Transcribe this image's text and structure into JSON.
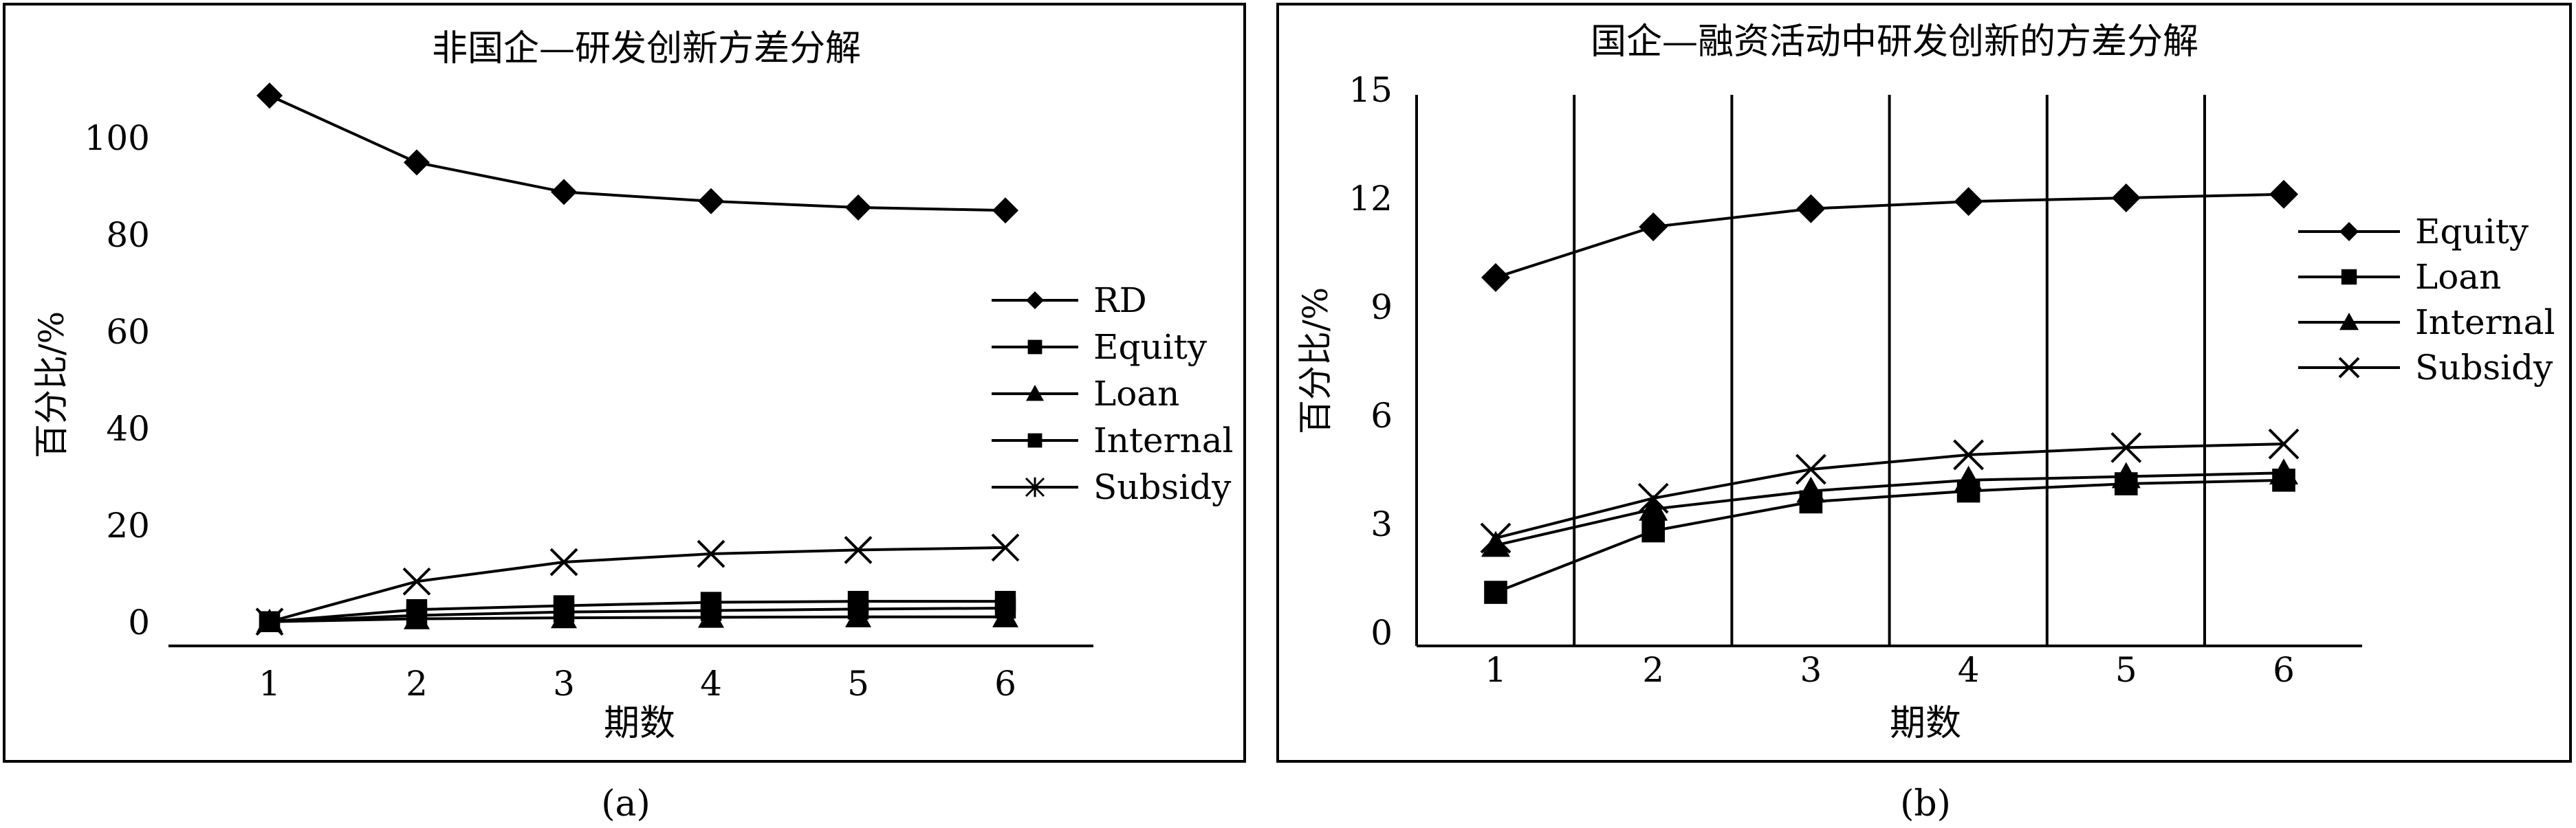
{
  "captions": [
    "(a)",
    "(b)"
  ],
  "chart_data": [
    {
      "type": "line",
      "title": "非国企—研发创新方差分解",
      "xlabel": "期数",
      "ylabel": "百分比/%",
      "x": [
        1,
        2,
        3,
        4,
        5,
        6
      ],
      "x_tick_labels": [
        "1",
        "2",
        "3",
        "4",
        "5",
        "6"
      ],
      "ylim": [
        -5,
        110
      ],
      "y_ticks": [
        0,
        20,
        40,
        60,
        80,
        100
      ],
      "y_tick_labels": [
        "0",
        "20",
        "40",
        "60",
        "80",
        "100"
      ],
      "grid": false,
      "legend_position": "right",
      "series": [
        {
          "name": "RD",
          "marker": "diamond",
          "legend_marker": "diamond",
          "values": [
            108.6,
            94.8,
            88.7,
            86.8,
            85.5,
            84.9
          ]
        },
        {
          "name": "Equity",
          "marker": "square",
          "legend_marker": "square",
          "values": [
            0,
            2.5,
            3.3,
            4.0,
            4.2,
            4.2
          ]
        },
        {
          "name": "Loan",
          "marker": "triangle",
          "legend_marker": "triangle",
          "values": [
            0,
            0.6,
            0.8,
            0.9,
            1.0,
            1.0
          ]
        },
        {
          "name": "Internal",
          "marker": "square",
          "legend_marker": "square",
          "values": [
            0,
            1.3,
            2.0,
            2.3,
            2.6,
            2.8
          ]
        },
        {
          "name": "Subsidy",
          "marker": "x",
          "legend_marker": "asterisk",
          "values": [
            0,
            8.3,
            12.3,
            14.0,
            14.8,
            15.3
          ]
        }
      ]
    },
    {
      "type": "line",
      "title": "国企—融资活动中研发创新的方差分解",
      "xlabel": "期数",
      "ylabel": "百分比/%",
      "x": [
        1,
        2,
        3,
        4,
        5,
        6
      ],
      "x_tick_labels": [
        "1",
        "2",
        "3",
        "4",
        "5",
        "6"
      ],
      "ylim": [
        0,
        15
      ],
      "y_ticks": [
        0,
        3,
        6,
        9,
        12,
        15
      ],
      "y_tick_labels": [
        "0",
        "3",
        "6",
        "9",
        "12",
        "15"
      ],
      "grid": "vertical category dividers",
      "legend_position": "right",
      "series": [
        {
          "name": "Equity",
          "marker": "diamond",
          "legend_marker": "diamond",
          "values": [
            9.8,
            11.2,
            11.7,
            11.9,
            12.0,
            12.1
          ]
        },
        {
          "name": "Loan",
          "marker": "square",
          "legend_marker": "square",
          "values": [
            1.1,
            2.8,
            3.6,
            3.9,
            4.1,
            4.2
          ]
        },
        {
          "name": "Internal",
          "marker": "triangle",
          "legend_marker": "triangle",
          "values": [
            2.4,
            3.4,
            3.9,
            4.2,
            4.3,
            4.4
          ]
        },
        {
          "name": "Subsidy",
          "marker": "x",
          "legend_marker": "x",
          "values": [
            2.6,
            3.7,
            4.5,
            4.9,
            5.1,
            5.2
          ]
        }
      ]
    }
  ]
}
